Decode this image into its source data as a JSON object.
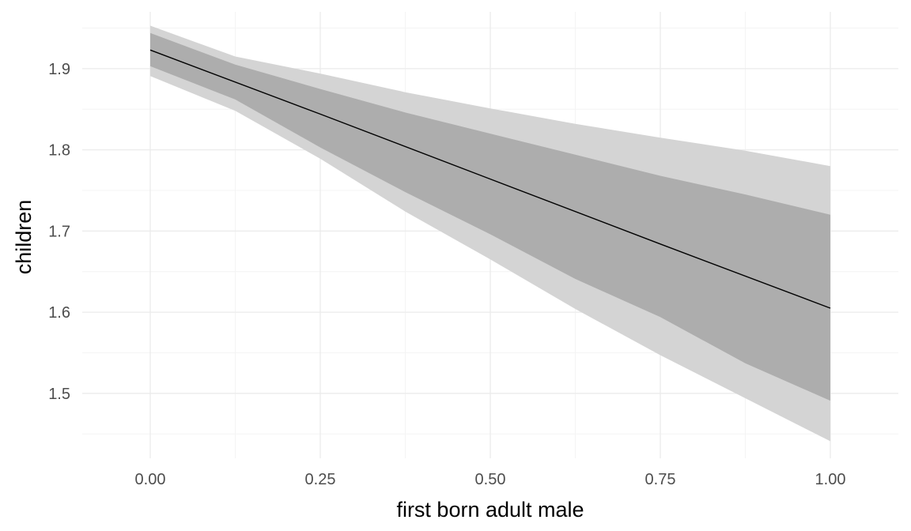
{
  "chart_data": {
    "type": "line",
    "title": "",
    "xlabel": "first born adult male",
    "ylabel": "children",
    "xlim": [
      -0.1,
      1.1
    ],
    "ylim": [
      1.42,
      1.97
    ],
    "x_ticks": [
      0.0,
      0.25,
      0.5,
      0.75,
      1.0
    ],
    "x_tick_labels": [
      "0.00",
      "0.25",
      "0.50",
      "0.75",
      "1.00"
    ],
    "y_ticks": [
      1.5,
      1.6,
      1.7,
      1.8,
      1.9
    ],
    "y_tick_labels": [
      "1.5",
      "1.6",
      "1.7",
      "1.8",
      "1.9"
    ],
    "y_minor_ticks": [
      1.45,
      1.55,
      1.65,
      1.75,
      1.85,
      1.95
    ],
    "x_minor_ticks": [
      0.125,
      0.375,
      0.625,
      0.875
    ],
    "grid": true,
    "legend": "none",
    "colors": {
      "line": "#000000",
      "outer_band": "#d4d4d4",
      "inner_band": "#adadad",
      "grid_major": "#ebebeb",
      "grid_minor": "#f4f4f4"
    },
    "series": [
      {
        "x": [
          0.0,
          0.25,
          0.5,
          0.75,
          1.0
        ],
        "values": [
          1.923,
          1.844,
          1.764,
          1.684,
          1.605
        ]
      }
    ],
    "bands": [
      {
        "x": [
          0.0,
          0.125,
          0.25,
          0.375,
          0.5,
          0.625,
          0.75,
          0.875,
          1.0
        ],
        "lower": [
          1.891,
          1.848,
          1.789,
          1.724,
          1.665,
          1.604,
          1.547,
          1.494,
          1.441
        ],
        "upper": [
          1.953,
          1.915,
          1.894,
          1.871,
          1.851,
          1.832,
          1.815,
          1.799,
          1.78
        ]
      },
      {
        "x": [
          0.0,
          0.125,
          0.25,
          0.375,
          0.5,
          0.625,
          0.75,
          0.875,
          1.0
        ],
        "lower": [
          1.903,
          1.862,
          1.803,
          1.748,
          1.696,
          1.641,
          1.594,
          1.537,
          1.491
        ],
        "upper": [
          1.944,
          1.905,
          1.875,
          1.846,
          1.82,
          1.794,
          1.768,
          1.745,
          1.72
        ]
      }
    ]
  }
}
